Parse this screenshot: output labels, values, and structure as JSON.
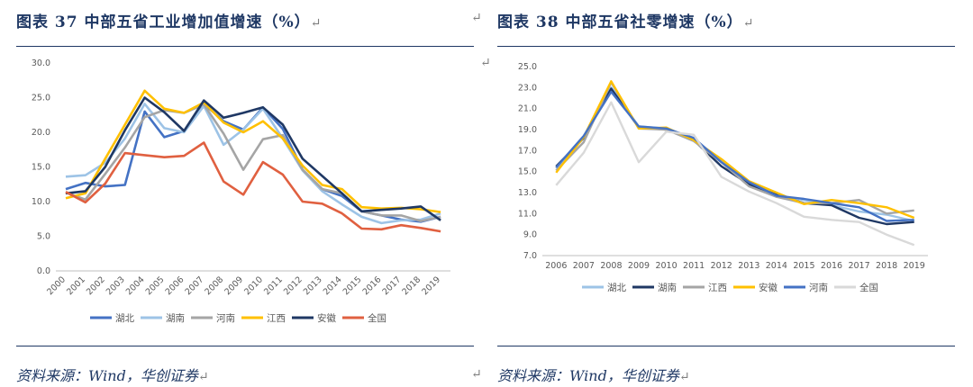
{
  "left": {
    "title": "图表 37   中部五省工业增加值增速（%）",
    "source": "资料来源：Wind，华创证券"
  },
  "right": {
    "title": "图表 38   中部五省社零增速（%）",
    "source": "资料来源：Wind，华创证券"
  },
  "return_mark": "↵",
  "colors": {
    "湖北": "#4472c4",
    "湖南": "#9dc3e6",
    "河南": "#a5a5a5",
    "江西": "#ffc000",
    "安徽": "#1f3864",
    "全国": "#e06040",
    "湖北_r": "#9dc3e6",
    "湖南_r": "#1f3864",
    "江西_r": "#a5a5a5",
    "安徽_r": "#ffc000",
    "河南_r": "#4472c4",
    "全国_r": "#d9d9d9"
  },
  "chart_data": [
    {
      "type": "line",
      "title": "",
      "categories": [
        "2000",
        "2001",
        "2002",
        "2003",
        "2004",
        "2005",
        "2006",
        "2007",
        "2008",
        "2009",
        "2010",
        "2011",
        "2012",
        "2013",
        "2014",
        "2015",
        "2016",
        "2017",
        "2018",
        "2019"
      ],
      "ylim": [
        0,
        30
      ],
      "yticks": [
        "0.0",
        "5.0",
        "10.0",
        "15.0",
        "20.0",
        "25.0",
        "30.0"
      ],
      "grid": false,
      "legend": "bottom",
      "series": [
        {
          "name": "湖北",
          "color_key": "湖北",
          "values": [
            11.8,
            12.7,
            12.2,
            12.4,
            23.0,
            19.3,
            20.2,
            24.1,
            21.6,
            20.4,
            23.6,
            20.5,
            14.6,
            11.8,
            10.8,
            8.6,
            8.0,
            7.4,
            7.1,
            7.8
          ]
        },
        {
          "name": "湖南",
          "color_key": "湖南",
          "values": [
            13.6,
            13.8,
            15.6,
            19.1,
            24.1,
            20.6,
            20.0,
            23.8,
            18.2,
            20.4,
            23.4,
            19.1,
            14.5,
            11.5,
            9.6,
            7.8,
            6.9,
            7.3,
            7.4,
            8.3
          ]
        },
        {
          "name": "河南",
          "color_key": "河南",
          "values": [
            11.3,
            10.3,
            14.0,
            17.8,
            22.2,
            23.2,
            22.8,
            24.0,
            19.8,
            14.6,
            19.0,
            19.6,
            14.6,
            11.8,
            11.2,
            8.6,
            8.0,
            8.0,
            7.2,
            7.8
          ]
        },
        {
          "name": "江西",
          "color_key": "江西",
          "values": [
            10.5,
            11.2,
            16.2,
            21.1,
            26.0,
            23.4,
            22.8,
            24.3,
            21.4,
            20.0,
            21.6,
            19.1,
            15.2,
            12.4,
            11.8,
            9.2,
            9.0,
            9.1,
            8.9,
            8.5
          ]
        },
        {
          "name": "安徽",
          "color_key": "安徽",
          "values": [
            11.2,
            11.5,
            15.0,
            20.3,
            25.0,
            22.9,
            20.2,
            24.6,
            22.1,
            22.8,
            23.6,
            21.1,
            16.2,
            13.7,
            11.2,
            8.6,
            8.8,
            9.0,
            9.3,
            7.3
          ]
        },
        {
          "name": "全国",
          "color_key": "全国",
          "values": [
            11.4,
            9.9,
            12.6,
            17.0,
            16.7,
            16.4,
            16.6,
            18.5,
            12.9,
            11.0,
            15.7,
            13.9,
            10.0,
            9.7,
            8.3,
            6.1,
            6.0,
            6.6,
            6.2,
            5.7
          ]
        }
      ]
    },
    {
      "type": "line",
      "title": "",
      "categories": [
        "2006",
        "2007",
        "2008",
        "2009",
        "2010",
        "2011",
        "2012",
        "2013",
        "2014",
        "2015",
        "2016",
        "2017",
        "2018",
        "2019"
      ],
      "ylim": [
        7,
        25
      ],
      "yticks": [
        "7.0",
        "9.0",
        "11.0",
        "13.0",
        "15.0",
        "17.0",
        "19.0",
        "21.0",
        "23.0",
        "25.0"
      ],
      "grid": false,
      "legend": "bottom",
      "series": [
        {
          "name": "湖北",
          "color_key": "湖北_r",
          "values": [
            15.3,
            18.3,
            23.0,
            19.3,
            19.1,
            18.0,
            16.0,
            13.8,
            12.7,
            12.3,
            11.8,
            11.2,
            10.9,
            10.3
          ]
        },
        {
          "name": "湖南",
          "color_key": "湖南_r",
          "values": [
            15.5,
            18.2,
            22.9,
            19.2,
            19.0,
            18.0,
            15.5,
            13.8,
            12.8,
            12.0,
            11.8,
            10.6,
            10.0,
            10.2
          ]
        },
        {
          "name": "江西",
          "color_key": "江西_r",
          "values": [
            15.1,
            17.8,
            23.5,
            19.1,
            19.0,
            17.9,
            15.9,
            13.6,
            12.6,
            12.0,
            12.0,
            12.3,
            11.0,
            11.3
          ]
        },
        {
          "name": "安徽",
          "color_key": "安徽_r",
          "values": [
            14.9,
            18.3,
            23.6,
            19.1,
            19.2,
            18.0,
            16.2,
            14.1,
            13.0,
            11.9,
            12.3,
            12.0,
            11.6,
            10.6
          ]
        },
        {
          "name": "河南",
          "color_key": "河南_r",
          "values": [
            15.4,
            18.4,
            22.6,
            19.3,
            19.1,
            18.2,
            15.9,
            14.0,
            12.7,
            12.4,
            12.0,
            11.6,
            10.3,
            10.4
          ]
        },
        {
          "name": "全国",
          "color_key": "全国_r",
          "values": [
            13.7,
            16.8,
            21.6,
            15.9,
            18.8,
            18.5,
            14.5,
            13.1,
            12.0,
            10.7,
            10.4,
            10.2,
            9.0,
            8.0
          ]
        }
      ]
    }
  ]
}
